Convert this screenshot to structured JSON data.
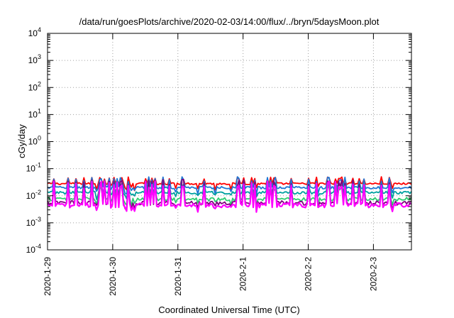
{
  "chart_data": {
    "type": "line",
    "title": "/data/run/goesPlots/archive/2020-02-03/14:00/flux/../bryn/5daysMoon.plot",
    "xlabel": "Coordinated Universal Time (UTC)",
    "ylabel": "cGy/day",
    "y_scale": "log",
    "ylim": [
      0.0001,
      10000
    ],
    "y_ticks": [
      {
        "base": "10",
        "exp": "-4",
        "value": 0.0001
      },
      {
        "base": "10",
        "exp": "-3",
        "value": 0.001
      },
      {
        "base": "10",
        "exp": "-2",
        "value": 0.01
      },
      {
        "base": "10",
        "exp": "-1",
        "value": 0.1
      },
      {
        "base": "10",
        "exp": "0",
        "value": 1
      },
      {
        "base": "10",
        "exp": "1",
        "value": 10
      },
      {
        "base": "10",
        "exp": "2",
        "value": 100
      },
      {
        "base": "10",
        "exp": "3",
        "value": 1000
      },
      {
        "base": "10",
        "exp": "4",
        "value": 10000
      }
    ],
    "x_axis_type": "date",
    "xlim": [
      "2020-01-29T00:00",
      "2020-02-03T14:00"
    ],
    "x_ticks": [
      "2020-1-29",
      "2020-1-30",
      "2020-1-31",
      "2020-2-1",
      "2020-2-2",
      "2020-2-3"
    ],
    "grid": true,
    "grid_style": "dotted",
    "series": [
      {
        "color": "#ff0000",
        "base_value": 0.028,
        "spike_value": 0.05,
        "noise": 0.08
      },
      {
        "color": "#1f77d4",
        "base_value": 0.02,
        "spike_value": 0.05,
        "noise": 0.1
      },
      {
        "color": "#00a0a0",
        "base_value": 0.013,
        "spike_value": 0.03,
        "noise": 0.12
      },
      {
        "color": "#2ecc71",
        "base_value": 0.0075,
        "spike_value": 0.025,
        "noise": 0.15
      },
      {
        "color": "#800080",
        "base_value": 0.0055,
        "spike_value": 0.04,
        "noise": 0.18
      },
      {
        "color": "#ff00ff",
        "base_value": 0.0045,
        "spike_value": 0.035,
        "noise": 0.2
      }
    ]
  }
}
